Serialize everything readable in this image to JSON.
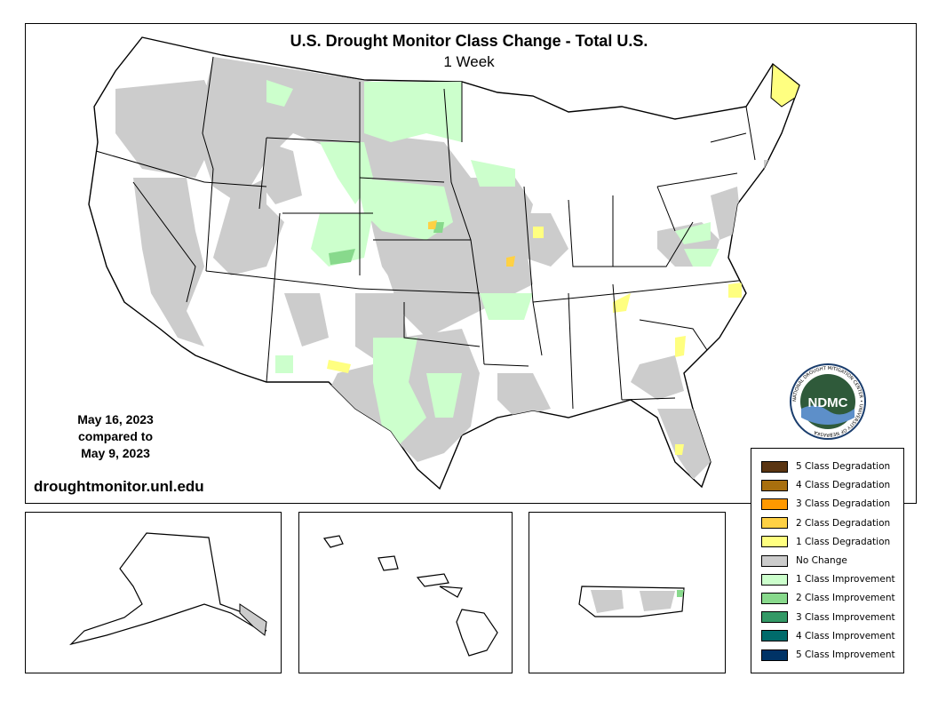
{
  "title": "U.S. Drought Monitor Class Change - Total U.S.",
  "subtitle": "1 Week",
  "dates": {
    "line1": "May 16, 2023",
    "line2": "compared to",
    "line3": "May 9, 2023"
  },
  "url": "droughtmonitor.unl.edu",
  "logo": {
    "text": "NDMC",
    "ring_text": "NATIONAL DROUGHT MITIGATION CENTER • UNIVERSITY OF NEBRASKA",
    "colors": {
      "ring": "#1a3d6d",
      "center": "#2f5a3a",
      "wave": "#5d8fc9"
    }
  },
  "legend": [
    {
      "label": "5 Class Degradation",
      "color": "#5a3512"
    },
    {
      "label": "4 Class Degradation",
      "color": "#a86f0e"
    },
    {
      "label": "3 Class Degradation",
      "color": "#ff9900"
    },
    {
      "label": "2 Class Degradation",
      "color": "#ffd144"
    },
    {
      "label": "1 Class Degradation",
      "color": "#ffff80"
    },
    {
      "label": "No Change",
      "color": "#cccccc"
    },
    {
      "label": "1 Class Improvement",
      "color": "#ccffcc"
    },
    {
      "label": "2 Class Improvement",
      "color": "#88d98c"
    },
    {
      "label": "3 Class Improvement",
      "color": "#339966"
    },
    {
      "label": "4 Class Improvement",
      "color": "#006b6b"
    },
    {
      "label": "5 Class Improvement",
      "color": "#003366"
    }
  ]
}
